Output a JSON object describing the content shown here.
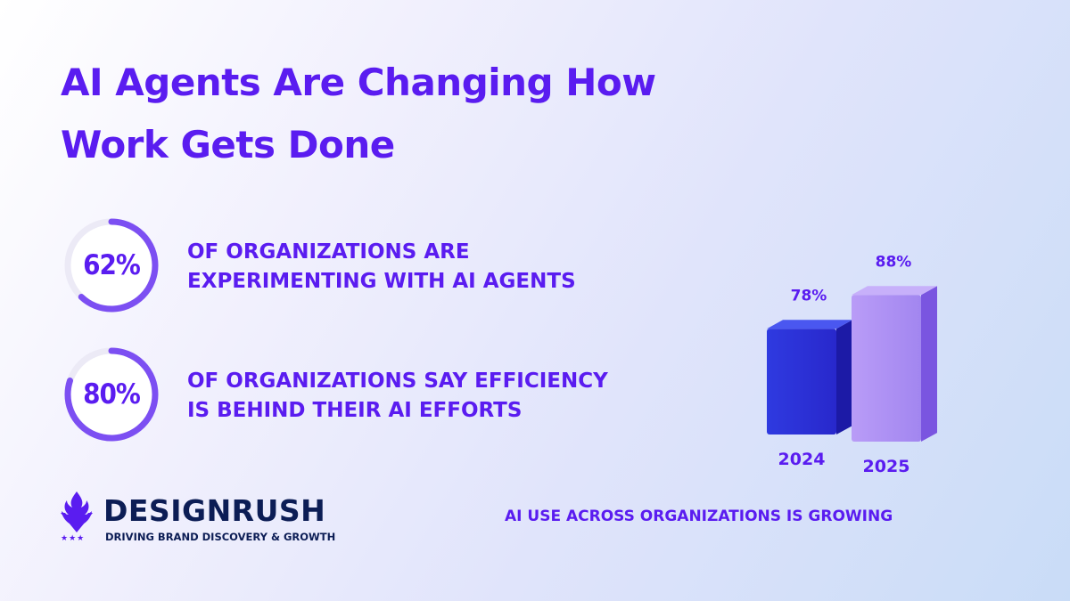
{
  "title": {
    "line1": "AI Agents Are Changing How",
    "line2": "Work Gets Done"
  },
  "stats": [
    {
      "value": "62%",
      "fraction": 0.62,
      "line1": "OF ORGANIZATIONS ARE",
      "line2": "EXPERIMENTING WITH AI AGENTS"
    },
    {
      "value": "80%",
      "fraction": 0.8,
      "line1": "OF ORGANIZATIONS SAY EFFICIENCY",
      "line2": "IS BEHIND THEIR AI EFFORTS"
    }
  ],
  "brand": {
    "name": "DESIGNRUSH",
    "tagline": "DRIVING BRAND DISCOVERY & GROWTH",
    "icon": "flame-shield-icon",
    "stars": "★★★"
  },
  "chart_data": {
    "type": "bar",
    "categories": [
      "2024",
      "2025"
    ],
    "values": [
      78,
      88
    ],
    "value_labels": [
      "78%",
      "88%"
    ],
    "ylim": [
      0,
      100
    ],
    "caption": "AI USE ACROSS ORGANIZATIONS IS GROWING"
  },
  "colors": {
    "accent": "#5a1cf0",
    "brand_navy": "#0c1d55",
    "bar_2024": "#2d2fd8",
    "bar_2025": "#a98af2",
    "ring_track": "#eceaf6"
  }
}
